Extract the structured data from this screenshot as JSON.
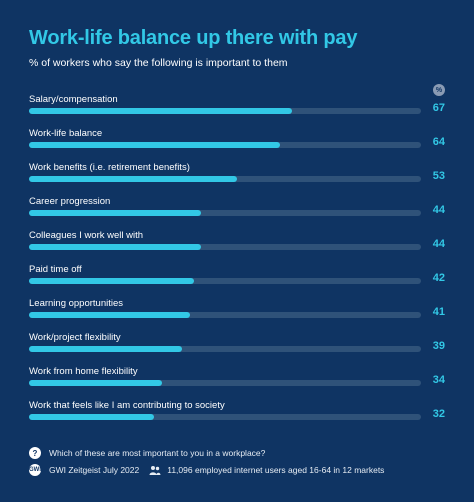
{
  "header": {
    "title": "Work-life balance up there with pay",
    "subtitle": "% of workers who say the following is important to them",
    "unit_badge": "%"
  },
  "colors": {
    "background": "#0f3463",
    "accent": "#32c8e6",
    "track": "#2f5279"
  },
  "chart_data": {
    "type": "bar",
    "orientation": "horizontal",
    "title": "Work-life balance up there with pay",
    "subtitle": "% of workers who say the following is important to them",
    "xlim": [
      0,
      100
    ],
    "grid": false,
    "categories": [
      "Salary/compensation",
      "Work-life balance",
      "Work benefits (i.e. retirement benefits)",
      "Career progression",
      "Colleagues I work well with",
      "Paid time off",
      "Learning opportunities",
      "Work/project flexibility",
      "Work from home flexibility",
      "Work that feels like I am contributing to society"
    ],
    "values": [
      67,
      64,
      53,
      44,
      44,
      42,
      41,
      39,
      34,
      32
    ]
  },
  "footer": {
    "question_icon": "?",
    "question": "Which of these are most important to you in a workplace?",
    "source_icon": "GWI",
    "source": "GWI Zeitgeist July 2022",
    "sample_icon": "users-icon",
    "sample": "11,096 employed internet users aged 16-64 in 12 markets"
  }
}
